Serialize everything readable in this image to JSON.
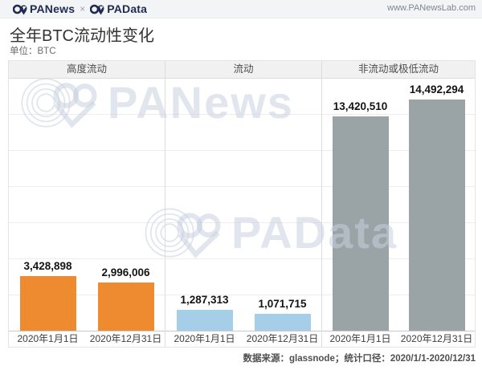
{
  "header": {
    "logo_panews": "PANews",
    "logo_separator": "×",
    "logo_padata": "PAData",
    "website": "www.PANewsLab.com"
  },
  "title": "全年BTC流动性变化",
  "unit_label": "单位：BTC",
  "watermarks": {
    "first": "PANews",
    "second": "PAData"
  },
  "footer": {
    "source_text": "数据来源：glassnode；统计口径：2020/1/1-2020/12/31"
  },
  "colors": {
    "highly_liquid_orange": "#EE8A30",
    "liquid_blue": "#A6CEE8",
    "illiquid_gray": "#9AA3A5",
    "logo_navy": "#1F2B50",
    "watermark": "rgba(201,208,223,0.55)"
  },
  "chart_data": {
    "type": "bar",
    "title": "全年BTC流动性变化",
    "unit": "BTC",
    "categories": [
      "2020年1月1日",
      "2020年12月31日"
    ],
    "groups": [
      {
        "label": "高度流动",
        "color": "#EE8A30",
        "values": [
          3428898,
          2996006
        ],
        "value_labels": [
          "3,428,898",
          "2,996,006"
        ]
      },
      {
        "label": "流动",
        "color": "#A6CEE8",
        "values": [
          1287313,
          1071715
        ],
        "value_labels": [
          "1,287,313",
          "1,071,715"
        ]
      },
      {
        "label": "非流动或极低流动",
        "color": "#9AA3A5",
        "values": [
          13420510,
          14492294
        ],
        "value_labels": [
          "13,420,510",
          "14,492,294"
        ]
      }
    ],
    "ylim": [
      0,
      16000000
    ],
    "gridlines": true,
    "legend_position": "none",
    "xlabel": "",
    "ylabel": "BTC"
  }
}
